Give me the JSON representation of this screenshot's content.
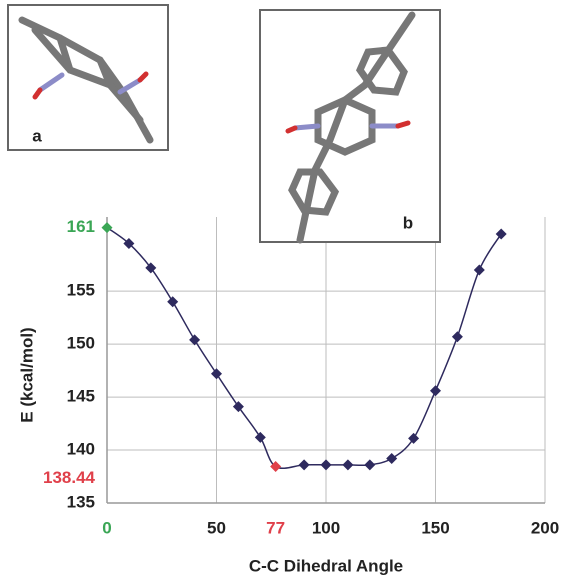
{
  "chart_data": {
    "type": "line",
    "xlabel": "C-C Dihedral Angle",
    "ylabel": "E (kcal/mol)",
    "x": [
      0,
      10,
      20,
      30,
      40,
      50,
      60,
      70,
      77,
      90,
      100,
      110,
      120,
      130,
      140,
      150,
      160,
      170,
      180
    ],
    "series": [
      {
        "color": "#2e2a5e",
        "values": [
          161,
          159.5,
          157.2,
          154.0,
          150.4,
          147.2,
          144.1,
          141.2,
          138.44,
          138.6,
          138.6,
          138.6,
          138.6,
          139.2,
          141.1,
          145.6,
          150.7,
          157.0,
          160.4
        ],
        "point_colors": [
          "#3aa655",
          null,
          null,
          null,
          null,
          null,
          null,
          null,
          "#e0404a",
          null,
          null,
          null,
          null,
          null,
          null,
          null,
          null,
          null,
          null
        ]
      }
    ],
    "xlim": [
      0,
      200
    ],
    "ylim": [
      135,
      162
    ],
    "xticks": [
      50,
      100,
      150,
      200
    ],
    "yticks": [
      135,
      140,
      145,
      150,
      155
    ],
    "xticks_highlight": [
      {
        "value": 0,
        "color": "#3aa655"
      },
      {
        "value": 77,
        "color": "#e0404a"
      }
    ],
    "yticks_highlight": [
      {
        "value": 161,
        "color": "#3aa655"
      },
      {
        "value": 138.44,
        "color": "#e0404a"
      }
    ],
    "grid": true,
    "insets": [
      {
        "label": "a",
        "color": "#3aa655"
      },
      {
        "label": "b",
        "color": "#e0404a"
      }
    ]
  }
}
